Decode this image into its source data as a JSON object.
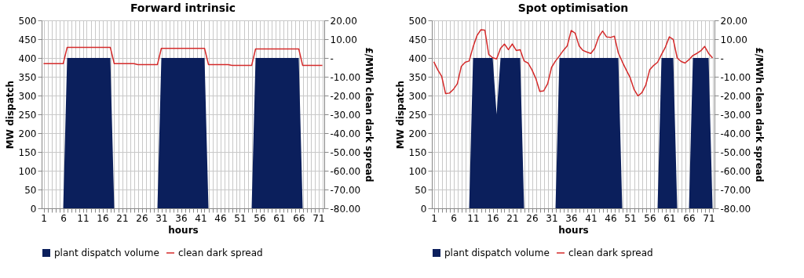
{
  "chart_data": [
    {
      "type": "area",
      "title": "Forward intrinsic",
      "xlabel": "hours",
      "ylabel": "MW dispatch",
      "y2label": "£/MWh clean dark spread",
      "x": [
        1,
        2,
        3,
        4,
        5,
        6,
        7,
        8,
        9,
        10,
        11,
        12,
        13,
        14,
        15,
        16,
        17,
        18,
        19,
        20,
        21,
        22,
        23,
        24,
        25,
        26,
        27,
        28,
        29,
        30,
        31,
        32,
        33,
        34,
        35,
        36,
        37,
        38,
        39,
        40,
        41,
        42,
        43,
        44,
        45,
        46,
        47,
        48,
        49,
        50,
        51,
        52,
        53,
        54,
        55,
        56,
        57,
        58,
        59,
        60,
        61,
        62,
        63,
        64,
        65,
        66,
        67,
        68,
        69,
        70,
        71,
        72
      ],
      "series": [
        {
          "name": "plant dispatch volume",
          "type": "area",
          "color": "#0b1f5c",
          "values": [
            0,
            0,
            0,
            0,
            0,
            0,
            400,
            400,
            400,
            400,
            400,
            400,
            400,
            400,
            400,
            400,
            400,
            400,
            0,
            0,
            0,
            0,
            0,
            0,
            0,
            0,
            0,
            0,
            0,
            0,
            400,
            400,
            400,
            400,
            400,
            400,
            400,
            400,
            400,
            400,
            400,
            400,
            0,
            0,
            0,
            0,
            0,
            0,
            0,
            0,
            0,
            0,
            0,
            0,
            400,
            400,
            400,
            400,
            400,
            400,
            400,
            400,
            400,
            400,
            400,
            400,
            0,
            0,
            0,
            0,
            0,
            0
          ]
        },
        {
          "name": "clean dark spread",
          "type": "line",
          "axis": "y2",
          "color": "#d42a2a",
          "values": [
            -3,
            -3,
            -3,
            -3,
            -3,
            -3,
            5.6,
            5.6,
            5.6,
            5.6,
            5.6,
            5.6,
            5.6,
            5.6,
            5.6,
            5.6,
            5.6,
            5.6,
            -3,
            -3,
            -3,
            -3,
            -3,
            -3,
            -3.5,
            -3.5,
            -3.5,
            -3.5,
            -3.5,
            -3.5,
            5.1,
            5.1,
            5.1,
            5.1,
            5.1,
            5.1,
            5.1,
            5.1,
            5.1,
            5.1,
            5.1,
            5.1,
            -3.5,
            -3.5,
            -3.5,
            -3.5,
            -3.5,
            -3.5,
            -4,
            -4,
            -4,
            -4,
            -4,
            -4,
            4.8,
            4.8,
            4.8,
            4.8,
            4.8,
            4.8,
            4.8,
            4.8,
            4.8,
            4.8,
            4.8,
            4.8,
            -4,
            -4,
            -4,
            -4,
            -4,
            -4
          ]
        }
      ],
      "xlim": [
        0.5,
        72.5
      ],
      "xticks": [
        1,
        {
          "value": 2,
          "label": null
        },
        {
          "value": 3,
          "label": null
        },
        {
          "value": 4,
          "label": null
        },
        {
          "value": 5,
          "label": null
        },
        6,
        {
          "value": 7,
          "label": null
        },
        {
          "value": 8,
          "label": null
        },
        {
          "value": 9,
          "label": null
        },
        {
          "value": 10,
          "label": null
        },
        11,
        {
          "value": 12,
          "label": null
        },
        {
          "value": 13,
          "label": null
        },
        {
          "value": 14,
          "label": null
        },
        {
          "value": 15,
          "label": null
        },
        16,
        {
          "value": 17,
          "label": null
        },
        {
          "value": 18,
          "label": null
        },
        {
          "value": 19,
          "label": null
        },
        {
          "value": 20,
          "label": null
        },
        21,
        {
          "value": 22,
          "label": null
        },
        {
          "value": 23,
          "label": null
        },
        {
          "value": 24,
          "label": null
        },
        {
          "value": 25,
          "label": null
        },
        26,
        {
          "value": 27,
          "label": null
        },
        {
          "value": 28,
          "label": null
        },
        {
          "value": 29,
          "label": null
        },
        {
          "value": 30,
          "label": null
        },
        31,
        {
          "value": 32,
          "label": null
        },
        {
          "value": 33,
          "label": null
        },
        {
          "value": 34,
          "label": null
        },
        {
          "value": 35,
          "label": null
        },
        36,
        {
          "value": 37,
          "label": null
        },
        {
          "value": 38,
          "label": null
        },
        {
          "value": 39,
          "label": null
        },
        {
          "value": 40,
          "label": null
        },
        41,
        {
          "value": 42,
          "label": null
        },
        {
          "value": 43,
          "label": null
        },
        {
          "value": 44,
          "label": null
        },
        {
          "value": 45,
          "label": null
        },
        46,
        {
          "value": 47,
          "label": null
        },
        {
          "value": 48,
          "label": null
        },
        {
          "value": 49,
          "label": null
        },
        {
          "value": 50,
          "label": null
        },
        51,
        {
          "value": 52,
          "label": null
        },
        {
          "value": 53,
          "label": null
        },
        {
          "value": 54,
          "label": null
        },
        {
          "value": 55,
          "label": null
        },
        56,
        {
          "value": 57,
          "label": null
        },
        {
          "value": 58,
          "label": null
        },
        {
          "value": 59,
          "label": null
        },
        {
          "value": 60,
          "label": null
        },
        61,
        {
          "value": 62,
          "label": null
        },
        {
          "value": 63,
          "label": null
        },
        {
          "value": 64,
          "label": null
        },
        {
          "value": 65,
          "label": null
        },
        66,
        {
          "value": 67,
          "label": null
        },
        {
          "value": 68,
          "label": null
        },
        {
          "value": 69,
          "label": null
        },
        {
          "value": 70,
          "label": null
        },
        71,
        {
          "value": 72,
          "label": null
        }
      ],
      "ylim": [
        0,
        500
      ],
      "yticks": [
        0,
        50,
        100,
        150,
        200,
        250,
        300,
        350,
        400,
        450,
        500
      ],
      "y2lim": [
        -80,
        20
      ],
      "y2ticks": [
        {
          "value": -80,
          "label": "-80.00"
        },
        {
          "value": -70,
          "label": "-70.00"
        },
        {
          "value": -60,
          "label": "-60.00"
        },
        {
          "value": -50,
          "label": "-50.00"
        },
        {
          "value": -40,
          "label": "-40.00"
        },
        {
          "value": -30,
          "label": "-30.00"
        },
        {
          "value": -20,
          "label": "-20.00"
        },
        {
          "value": -10,
          "label": "-10.00"
        },
        {
          "value": 0,
          "label": "-"
        },
        {
          "value": 10,
          "label": "10.00"
        },
        {
          "value": 20,
          "label": "20.00"
        }
      ],
      "grid": true,
      "legend": "bottom",
      "marker": "none",
      "line_style": "solid"
    },
    {
      "type": "area",
      "title": "Spot optimisation",
      "xlabel": "hours",
      "ylabel": "MW dispatch",
      "y2label": "£/MWh clean dark spread",
      "x": [
        1,
        2,
        3,
        4,
        5,
        6,
        7,
        8,
        9,
        10,
        11,
        12,
        13,
        14,
        15,
        16,
        17,
        18,
        19,
        20,
        21,
        22,
        23,
        24,
        25,
        26,
        27,
        28,
        29,
        30,
        31,
        32,
        33,
        34,
        35,
        36,
        37,
        38,
        39,
        40,
        41,
        42,
        43,
        44,
        45,
        46,
        47,
        48,
        49,
        50,
        51,
        52,
        53,
        54,
        55,
        56,
        57,
        58,
        59,
        60,
        61,
        62,
        63,
        64,
        65,
        66,
        67,
        68,
        69,
        70,
        71,
        72
      ],
      "series": [
        {
          "name": "plant dispatch volume",
          "type": "area",
          "color": "#0b1f5c",
          "values": [
            0,
            0,
            0,
            0,
            0,
            0,
            0,
            0,
            0,
            0,
            400,
            400,
            400,
            400,
            400,
            400,
            250,
            400,
            400,
            400,
            400,
            400,
            400,
            0,
            0,
            0,
            0,
            0,
            0,
            0,
            0,
            0,
            400,
            400,
            400,
            400,
            400,
            400,
            400,
            400,
            400,
            400,
            400,
            400,
            400,
            400,
            400,
            400,
            0,
            0,
            0,
            0,
            0,
            0,
            0,
            0,
            0,
            0,
            400,
            400,
            400,
            400,
            0,
            0,
            0,
            0,
            400,
            400,
            400,
            400,
            400,
            0
          ]
        },
        {
          "name": "clean dark spread",
          "type": "line",
          "axis": "y2",
          "color": "#d42a2a",
          "values": [
            -2,
            -6.3,
            -9.7,
            -19,
            -18.7,
            -16.7,
            -13.7,
            -4.5,
            -2.3,
            -1.6,
            5.8,
            11.9,
            15,
            14.8,
            1.8,
            0.1,
            -0.5,
            5.1,
            7.4,
            4.4,
            7.4,
            4,
            4.4,
            -1.6,
            -2.7,
            -6.3,
            -11,
            -17.8,
            -17.5,
            -13.7,
            -5,
            -1.6,
            1.1,
            4,
            6.5,
            14.6,
            13.2,
            6.5,
            4,
            3.1,
            2.4,
            5.1,
            11.2,
            14.3,
            11.2,
            10.9,
            11.6,
            2.7,
            -2,
            -6.3,
            -10.4,
            -16.7,
            -20.2,
            -18.5,
            -14.4,
            -6.3,
            -4,
            -2.3,
            1.8,
            5.8,
            11.2,
            9.8,
            0,
            -1.9,
            -2.7,
            -0.9,
            1.3,
            2.4,
            3.8,
            6.1,
            2.4,
            0
          ]
        }
      ],
      "xlim": [
        0.5,
        72.5
      ],
      "xticks": [
        1,
        {
          "value": 2,
          "label": null
        },
        {
          "value": 3,
          "label": null
        },
        {
          "value": 4,
          "label": null
        },
        {
          "value": 5,
          "label": null
        },
        6,
        {
          "value": 7,
          "label": null
        },
        {
          "value": 8,
          "label": null
        },
        {
          "value": 9,
          "label": null
        },
        {
          "value": 10,
          "label": null
        },
        11,
        {
          "value": 12,
          "label": null
        },
        {
          "value": 13,
          "label": null
        },
        {
          "value": 14,
          "label": null
        },
        {
          "value": 15,
          "label": null
        },
        16,
        {
          "value": 17,
          "label": null
        },
        {
          "value": 18,
          "label": null
        },
        {
          "value": 19,
          "label": null
        },
        {
          "value": 20,
          "label": null
        },
        21,
        {
          "value": 22,
          "label": null
        },
        {
          "value": 23,
          "label": null
        },
        {
          "value": 24,
          "label": null
        },
        {
          "value": 25,
          "label": null
        },
        26,
        {
          "value": 27,
          "label": null
        },
        {
          "value": 28,
          "label": null
        },
        {
          "value": 29,
          "label": null
        },
        {
          "value": 30,
          "label": null
        },
        31,
        {
          "value": 32,
          "label": null
        },
        {
          "value": 33,
          "label": null
        },
        {
          "value": 34,
          "label": null
        },
        {
          "value": 35,
          "label": null
        },
        36,
        {
          "value": 37,
          "label": null
        },
        {
          "value": 38,
          "label": null
        },
        {
          "value": 39,
          "label": null
        },
        {
          "value": 40,
          "label": null
        },
        41,
        {
          "value": 42,
          "label": null
        },
        {
          "value": 43,
          "label": null
        },
        {
          "value": 44,
          "label": null
        },
        {
          "value": 45,
          "label": null
        },
        46,
        {
          "value": 47,
          "label": null
        },
        {
          "value": 48,
          "label": null
        },
        {
          "value": 49,
          "label": null
        },
        {
          "value": 50,
          "label": null
        },
        51,
        {
          "value": 52,
          "label": null
        },
        {
          "value": 53,
          "label": null
        },
        {
          "value": 54,
          "label": null
        },
        {
          "value": 55,
          "label": null
        },
        56,
        {
          "value": 57,
          "label": null
        },
        {
          "value": 58,
          "label": null
        },
        {
          "value": 59,
          "label": null
        },
        {
          "value": 60,
          "label": null
        },
        61,
        {
          "value": 62,
          "label": null
        },
        {
          "value": 63,
          "label": null
        },
        {
          "value": 64,
          "label": null
        },
        {
          "value": 65,
          "label": null
        },
        66,
        {
          "value": 67,
          "label": null
        },
        {
          "value": 68,
          "label": null
        },
        {
          "value": 69,
          "label": null
        },
        {
          "value": 70,
          "label": null
        },
        71,
        {
          "value": 72,
          "label": null
        }
      ],
      "ylim": [
        0,
        500
      ],
      "yticks": [
        0,
        50,
        100,
        150,
        200,
        250,
        300,
        350,
        400,
        450,
        500
      ],
      "y2lim": [
        -80,
        20
      ],
      "y2ticks": [
        {
          "value": -80,
          "label": "-80.00"
        },
        {
          "value": -70,
          "label": "-70.00"
        },
        {
          "value": -60,
          "label": "-60.00"
        },
        {
          "value": -50,
          "label": "-50.00"
        },
        {
          "value": -40,
          "label": "-40.00"
        },
        {
          "value": -30,
          "label": "-30.00"
        },
        {
          "value": -20,
          "label": "-20.00"
        },
        {
          "value": -10,
          "label": "-10.00"
        },
        {
          "value": 0,
          "label": "-"
        },
        {
          "value": 10,
          "label": "10.00"
        },
        {
          "value": 20,
          "label": "20.00"
        }
      ],
      "grid": true,
      "legend": "bottom",
      "marker": "none",
      "line_style": "solid"
    }
  ]
}
